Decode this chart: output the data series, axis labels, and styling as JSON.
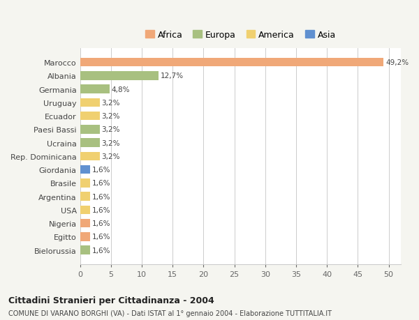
{
  "countries": [
    "Marocco",
    "Albania",
    "Germania",
    "Uruguay",
    "Ecuador",
    "Paesi Bassi",
    "Ucraina",
    "Rep. Dominicana",
    "Giordania",
    "Brasile",
    "Argentina",
    "USA",
    "Nigeria",
    "Egitto",
    "Bielorussia"
  ],
  "values": [
    49.2,
    12.7,
    4.8,
    3.2,
    3.2,
    3.2,
    3.2,
    3.2,
    1.6,
    1.6,
    1.6,
    1.6,
    1.6,
    1.6,
    1.6
  ],
  "labels": [
    "49,2%",
    "12,7%",
    "4,8%",
    "3,2%",
    "3,2%",
    "3,2%",
    "3,2%",
    "3,2%",
    "1,6%",
    "1,6%",
    "1,6%",
    "1,6%",
    "1,6%",
    "1,6%",
    "1,6%"
  ],
  "continents": [
    "Africa",
    "Europa",
    "Europa",
    "America",
    "America",
    "Europa",
    "Europa",
    "America",
    "Asia",
    "America",
    "America",
    "America",
    "Africa",
    "Africa",
    "Europa"
  ],
  "colors": {
    "Africa": "#F0A878",
    "Europa": "#A8C080",
    "America": "#F0D070",
    "Asia": "#6090D0"
  },
  "legend_order": [
    "Africa",
    "Europa",
    "America",
    "Asia"
  ],
  "title": "Cittadini Stranieri per Cittadinanza - 2004",
  "subtitle": "COMUNE DI VARANO BORGHI (VA) - Dati ISTAT al 1° gennaio 2004 - Elaborazione TUTTITALIA.IT",
  "xlim": [
    0,
    52
  ],
  "xticks": [
    0,
    5,
    10,
    15,
    20,
    25,
    30,
    35,
    40,
    45,
    50
  ],
  "background_color": "#f5f5f0",
  "plot_background": "#ffffff",
  "grid_color": "#cccccc"
}
